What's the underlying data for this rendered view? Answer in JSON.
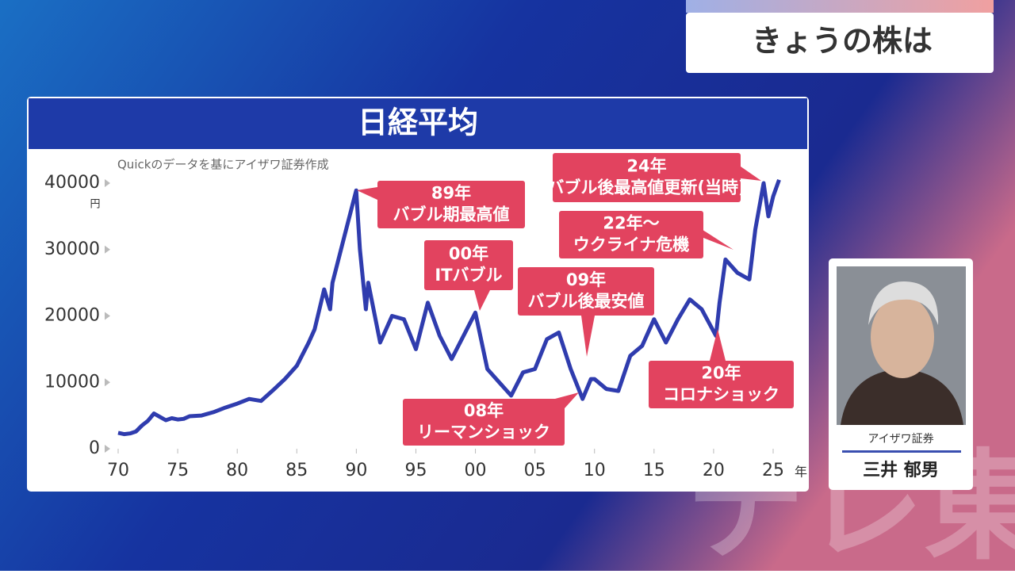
{
  "header": {
    "title": "きょうの株は"
  },
  "chart_data": {
    "type": "line",
    "title": "日経平均",
    "source": "Quickのデータを基にアイザワ証券作成",
    "y_unit": "円",
    "x_unit": "年",
    "color": "#2f3cae",
    "x": [
      1970,
      1970.5,
      1971,
      1971.5,
      1972,
      1972.5,
      1973,
      1973.5,
      1974,
      1974.5,
      1975,
      1975.5,
      1976,
      1977,
      1978,
      1979,
      1980,
      1981,
      1982,
      1983,
      1984,
      1985,
      1986,
      1986.5,
      1987.3,
      1987.8,
      1988,
      1989,
      1989.99,
      1990.3,
      1990.8,
      1991,
      1992,
      1993,
      1994,
      1995,
      1996,
      1997,
      1998,
      1999,
      2000,
      2001,
      2002,
      2003,
      2004,
      2005,
      2006,
      2007,
      2008,
      2009,
      2009.7,
      2010,
      2011,
      2012,
      2013,
      2014,
      2015,
      2016,
      2017,
      2018,
      2019,
      2020.2,
      2020.5,
      2021,
      2022,
      2023,
      2023.5,
      2024.2,
      2024.6,
      2025,
      2025.5
    ],
    "values": [
      2400,
      2200,
      2300,
      2600,
      3500,
      4200,
      5300,
      4800,
      4300,
      4600,
      4400,
      4500,
      4900,
      5000,
      5500,
      6200,
      6800,
      7500,
      7200,
      8800,
      10500,
      12500,
      16000,
      18000,
      24000,
      21000,
      25000,
      32000,
      38900,
      30000,
      21000,
      25000,
      16000,
      20000,
      19500,
      15000,
      22000,
      17000,
      13500,
      17000,
      20500,
      12000,
      10000,
      8000,
      11500,
      12000,
      16500,
      17500,
      12000,
      7500,
      10500,
      10500,
      9000,
      8700,
      14000,
      15500,
      19500,
      16000,
      19500,
      22500,
      21000,
      17000,
      22000,
      28500,
      26500,
      25500,
      33000,
      40000,
      35000,
      38000,
      40500
    ],
    "xlim": [
      1970,
      2025
    ],
    "ylim": [
      0,
      40000
    ],
    "xticks": [
      {
        "value": 1970,
        "label": "70"
      },
      {
        "value": 1975,
        "label": "75"
      },
      {
        "value": 1980,
        "label": "80"
      },
      {
        "value": 1985,
        "label": "85"
      },
      {
        "value": 1990,
        "label": "90"
      },
      {
        "value": 1995,
        "label": "95"
      },
      {
        "value": 2000,
        "label": "00"
      },
      {
        "value": 2005,
        "label": "05"
      },
      {
        "value": 2010,
        "label": "10"
      },
      {
        "value": 2015,
        "label": "15"
      },
      {
        "value": 2020,
        "label": "20"
      },
      {
        "value": 2025,
        "label": "25"
      }
    ],
    "yticks": [
      0,
      10000,
      20000,
      30000,
      40000
    ],
    "annotations": [
      {
        "lines": [
          "89年",
          "バブル期最高値"
        ]
      },
      {
        "lines": [
          "00年",
          "ITバブル"
        ]
      },
      {
        "lines": [
          "09年",
          "バブル後最安値"
        ]
      },
      {
        "lines": [
          "08年",
          "リーマンショック"
        ]
      },
      {
        "lines": [
          "22年〜",
          "ウクライナ危機"
        ]
      },
      {
        "lines": [
          "24年",
          "バブル後最高値更新(当時)"
        ]
      },
      {
        "lines": [
          "20年",
          "コロナショック"
        ]
      }
    ]
  },
  "presenter": {
    "company": "アイザワ証券",
    "name": "三井 郁男"
  },
  "watermark": "テレ東"
}
